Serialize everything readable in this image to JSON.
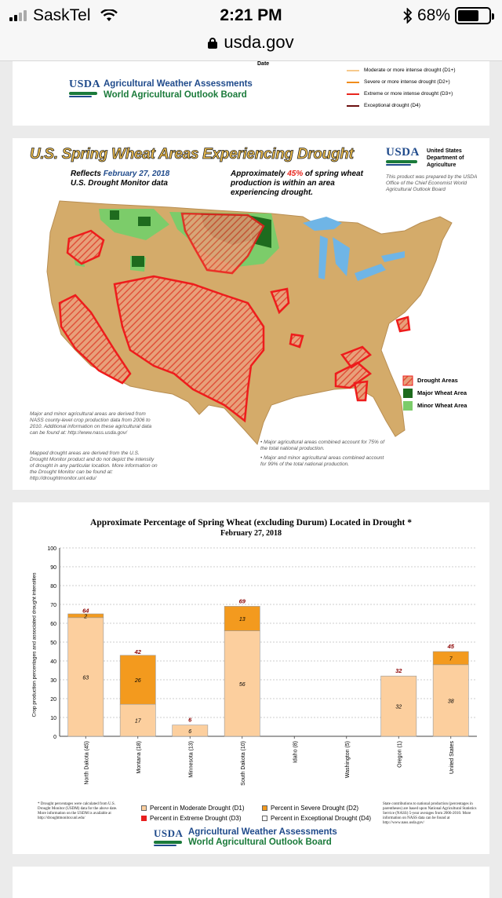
{
  "statusbar": {
    "carrier": "SaskTel",
    "time": "2:21 PM",
    "battery": "68%",
    "battery_level": 0.68
  },
  "browser": {
    "url": "usda.gov"
  },
  "card1": {
    "date_label": "Date",
    "logo": "USDA",
    "title1": "Agricultural Weather Assessments",
    "title2": "World Agricultural Outlook Board",
    "legend": [
      {
        "label": "Moderate or more intense drought (D1+)",
        "color": "#f7c98c"
      },
      {
        "label": "Severe or more intense drought (D2+)",
        "color": "#f08c1c"
      },
      {
        "label": "Extreme or more intense drought (D3+)",
        "color": "#e8261e"
      },
      {
        "label": "Exceptional drought (D4)",
        "color": "#6b0f0f"
      }
    ]
  },
  "map": {
    "title": "U.S. Spring Wheat Areas Experiencing Drought",
    "reflects_prefix": "Reflects",
    "reflects_date": "February 27, 2018",
    "monitor": "U.S. Drought Monitor data",
    "approx_prefix": "Approximately",
    "approx_pct": "45%",
    "approx_rest": "of spring wheat production is within an area experiencing drought.",
    "usda_logo": "USDA",
    "usda_dept": "United States Department of Agriculture",
    "prepared_note": "This product was prepared by the USDA Office of the Chief Economist World Agricultural Outlook Board",
    "legend": [
      {
        "label": "Drought Areas",
        "color": "#f28b7a"
      },
      {
        "label": "Major Wheat Area",
        "color": "#1e6b1e"
      },
      {
        "label": "Minor Wheat Area",
        "color": "#7ccc6a"
      }
    ],
    "note_left1": "Major and minor agricultural areas are derived from NASS county-level crop production data from 2006 to 2010. Additional information on these agricultural data can be found at: http://www.nass.usda.gov/",
    "note_left2": "Mapped drought areas are derived from the U.S. Drought Monitor product and do not depict the intensity of drought in any particular location. More information on the Drought Monitor can be found at: http://droughtmonitor.unl.edu/",
    "note_right1": "Major agricultural areas combined account for 75% of the total national production.",
    "note_right2": "Major and minor agricultural areas combined account for 99% of the total national production."
  },
  "chart_data": {
    "type": "bar",
    "title": "Approximate Percentage of Spring Wheat (excluding Durum) Located in Drought *",
    "subtitle": "February  27, 2018",
    "ylabel": "Crop production percentages and associated drought intensities",
    "ylim": [
      0,
      100
    ],
    "yticks": [
      10,
      20,
      30,
      40,
      50,
      60,
      70,
      80,
      90,
      100
    ],
    "categories": [
      "North Dakota (45)",
      "Montana (18)",
      "Minnesota (13)",
      "South Dakota (10)",
      "Idaho (8)",
      "Washington (5)",
      "Oregon (1)",
      "United States"
    ],
    "series": [
      {
        "name": "Percent in Moderate Drought (D1)",
        "color": "#fccf9e",
        "values": [
          63,
          17,
          6,
          56,
          null,
          null,
          32,
          38
        ]
      },
      {
        "name": "Percent in Severe Drought (D2)",
        "color": "#f39a1e",
        "values": [
          2,
          26,
          null,
          13,
          null,
          null,
          null,
          7
        ]
      },
      {
        "name": "Percent in Extreme Drought (D3)",
        "color": "#e81e1e",
        "values": [
          null,
          null,
          null,
          null,
          null,
          null,
          null,
          null
        ]
      },
      {
        "name": "Percent in Exceptional Drought (D4)",
        "color": "#ffffff",
        "values": [
          null,
          null,
          null,
          null,
          null,
          null,
          null,
          null
        ]
      }
    ],
    "totals": [
      64,
      42,
      6,
      69,
      null,
      null,
      32,
      45
    ],
    "footnote_left": "* Drought percentages were calculated from U.S. Drought Monitor (USDM) data for the above date. More information on the USDM is available at http://droughtmonitor.unl.edu/",
    "footnote_right": "State contributions to national production (percentages in parentheses) are based upon National Agricultural Statistics Service (NASS) 5-year averages from 2006-2010. More information on NASS data can be found at http://www.nass.usda.gov/"
  },
  "card3": {
    "logo": "USDA",
    "title1": "Agricultural Weather Assessments",
    "title2": "World Agricultural Outlook Board"
  }
}
